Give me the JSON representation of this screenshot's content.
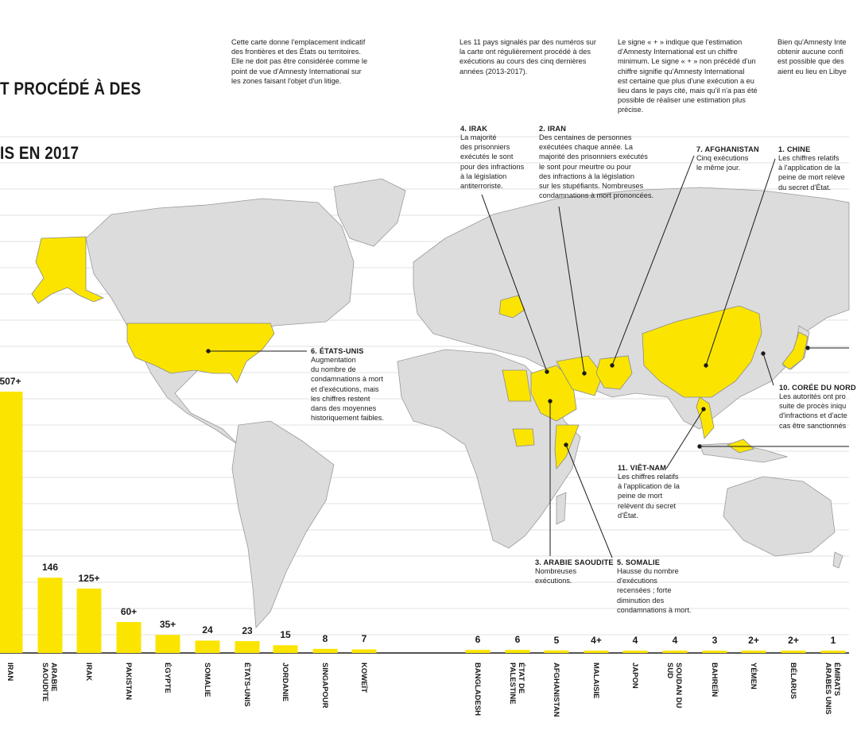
{
  "title_lines": [
    "T PROCÉDÉ À DES",
    "IS EN 2017"
  ],
  "notes": [
    "Cette carte donne l'emplacement indicatif\ndes frontières et des États ou territoires.\nElle ne doit pas être considérée comme le\npoint de vue d'Amnesty International sur\nles zones faisant l'objet d'un litige.",
    "Les 11 pays signalés par des numéros sur\nla carte ont régulièrement procédé à des\nexécutions au cours des cinq dernières\nannées (2013-2017).",
    "Le signe « + » indique que l'estimation\nd'Amnesty International est un chiffre\nminimum. Le signe « + » non précédé d'un\nchiffre signifie qu'Amnesty International\nest certaine que plus d'une exécution a eu\nlieu dans le pays cité, mais qu'il n'a pas été\npossible de réaliser une estimation plus\nprécise.",
    "Bien qu'Amnesty Inte\nobtenir aucune confi\nest possible que des\naient eu lieu en Libye"
  ],
  "annotations": [
    {
      "title": "4. IRAK",
      "text": "La majorité\ndes prisonniers\nexécutés le sont\npour des infractions\nà la législation\nantiterroriste."
    },
    {
      "title": "2. IRAN",
      "text": "Des centaines de personnes\nexécutées chaque année. La\nmajorité des prisonniers exécutés\nle sont pour meurtre ou pour\ndes infractions à la législation\nsur les stupéfiants. Nombreuses\ncondamnations à mort prononcées."
    },
    {
      "title": "7. AFGHANISTAN",
      "text": "Cinq exécutions\nle même jour."
    },
    {
      "title": "1. CHINE",
      "text": "Les chiffres relatifs\nà l'application de la\npeine de mort relève\ndu secret d'État."
    },
    {
      "title": "6. ÉTATS-UNIS",
      "text": "Augmentation\ndu nombre de\ncondamnations à mort\net d'exécutions, mais\nles chiffres restent\ndans des moyennes\nhistoriquement faibles."
    },
    {
      "title": "10. CORÉE DU NORD",
      "text": "Les autorités ont pro\nsuite de procès iniqu\nd'infractions et d'acte\ncas être sanctionnés"
    },
    {
      "title": "11. VIÊT-NAM",
      "text": "Les chiffres relatifs\nà l'application de la\npeine de mort\nrelèvent du secret\nd'État."
    },
    {
      "title": "3. ARABIE SAOUDITE",
      "text": "Nombreuses\nexécutions."
    },
    {
      "title": "5. SOMALIE",
      "text": "Hausse du nombre\nd'exécutions\nrecensées ; forte\ndiminution des\ncondamnations à mort."
    }
  ],
  "colors": {
    "highlight": "#fbe500",
    "land": "#dcdcdc",
    "border": "#9a9a9a",
    "rule": "#e2e2e2",
    "ink": "#1a1a1a"
  },
  "chart_data": {
    "type": "bar",
    "title": "",
    "xlabel": "",
    "ylabel": "",
    "categories": [
      "IRAN",
      "ARABIE\nSAOUDITE",
      "IRAK",
      "PAKISTAN",
      "ÉGYPTE",
      "SOMALIE",
      "ÉTATS-UNIS",
      "JORDANIE",
      "SINGAPOUR",
      "KOWEÏT",
      "BANGLADESH",
      "ÉTAT DE\nPALESTINE",
      "AFGHANISTAN",
      "MALAISIE",
      "JAPON",
      "SOUDAN DU\nSUD",
      "BAHREÏN",
      "YÉMEN",
      "BÉLARUS",
      "ÉMIRATS\nARABES UNIS"
    ],
    "values": [
      507,
      146,
      125,
      60,
      35,
      24,
      23,
      15,
      8,
      7,
      6,
      6,
      5,
      4,
      4,
      4,
      3,
      2,
      2,
      1
    ],
    "value_labels": [
      "507+",
      "146",
      "125+",
      "60+",
      "35+",
      "24",
      "23",
      "15",
      "8",
      "7",
      "6",
      "6",
      "5",
      "4+",
      "4",
      "4",
      "3",
      "2+",
      "2+",
      "1"
    ],
    "grid": true,
    "ylim": [
      0,
      507
    ]
  }
}
